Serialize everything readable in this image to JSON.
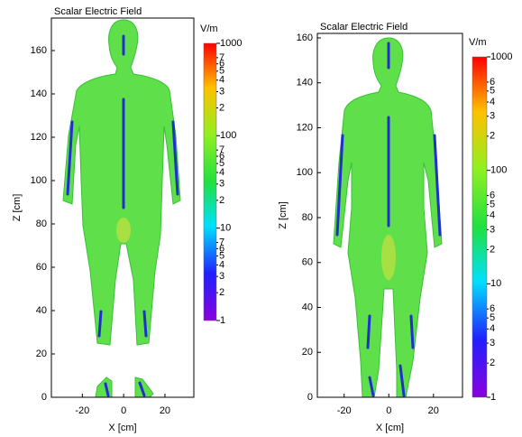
{
  "chart_data": [
    {
      "type": "field-map",
      "title": "Scalar Electric Field",
      "xlabel": "X [cm]",
      "ylabel": "Z [cm]",
      "xlim": [
        -35,
        34
      ],
      "xticks": [
        -20,
        0,
        20
      ],
      "ylim": [
        0,
        175
      ],
      "yticks": [
        0,
        20,
        40,
        60,
        80,
        100,
        120,
        140,
        160
      ],
      "colorbar": {
        "label": "V/m",
        "log": true,
        "lim": [
          1,
          1000
        ],
        "ticks": [
          1,
          {
            "value": 2,
            "label": "2"
          },
          {
            "value": 3,
            "label": "3"
          },
          {
            "value": 4,
            "label": "4"
          },
          {
            "value": 5,
            "label": "5"
          },
          {
            "value": 6,
            "label": "6"
          },
          {
            "value": 7,
            "label": "7"
          },
          10,
          {
            "value": 20,
            "label": "2"
          },
          {
            "value": 30,
            "label": "3"
          },
          {
            "value": 40,
            "label": "4"
          },
          {
            "value": 50,
            "label": "5"
          },
          {
            "value": 60,
            "label": "6"
          },
          {
            "value": 70,
            "label": "7"
          },
          100,
          {
            "value": 200,
            "label": "2"
          },
          {
            "value": 300,
            "label": "3"
          },
          {
            "value": 400,
            "label": "4"
          },
          {
            "value": 500,
            "label": "5"
          },
          {
            "value": 600,
            "label": "6"
          },
          {
            "value": 700,
            "label": "7"
          },
          1000
        ]
      }
    },
    {
      "type": "field-map",
      "title": "Scalar Electric Field",
      "xlabel": "X [cm]",
      "ylabel": "Z [cm]",
      "xlim": [
        -32,
        33
      ],
      "xticks": [
        -20,
        0,
        20
      ],
      "ylim": [
        0,
        162
      ],
      "yticks": [
        0,
        20,
        40,
        60,
        80,
        100,
        120,
        140,
        160
      ],
      "colorbar": {
        "label": "V/m",
        "log": true,
        "lim": [
          1,
          1000
        ],
        "ticks": [
          1,
          {
            "value": 2,
            "label": "2"
          },
          {
            "value": 3,
            "label": "3"
          },
          {
            "value": 4,
            "label": "4"
          },
          {
            "value": 5,
            "label": "5"
          },
          {
            "value": 6,
            "label": "6"
          },
          10,
          {
            "value": 20,
            "label": "2"
          },
          {
            "value": 30,
            "label": "3"
          },
          {
            "value": 40,
            "label": "4"
          },
          {
            "value": 50,
            "label": "5"
          },
          {
            "value": 60,
            "label": "6"
          },
          100,
          {
            "value": 200,
            "label": "2"
          },
          {
            "value": 300,
            "label": "3"
          },
          {
            "value": 400,
            "label": "4"
          },
          {
            "value": 500,
            "label": "5"
          },
          {
            "value": 600,
            "label": "6"
          },
          1000
        ]
      }
    }
  ]
}
